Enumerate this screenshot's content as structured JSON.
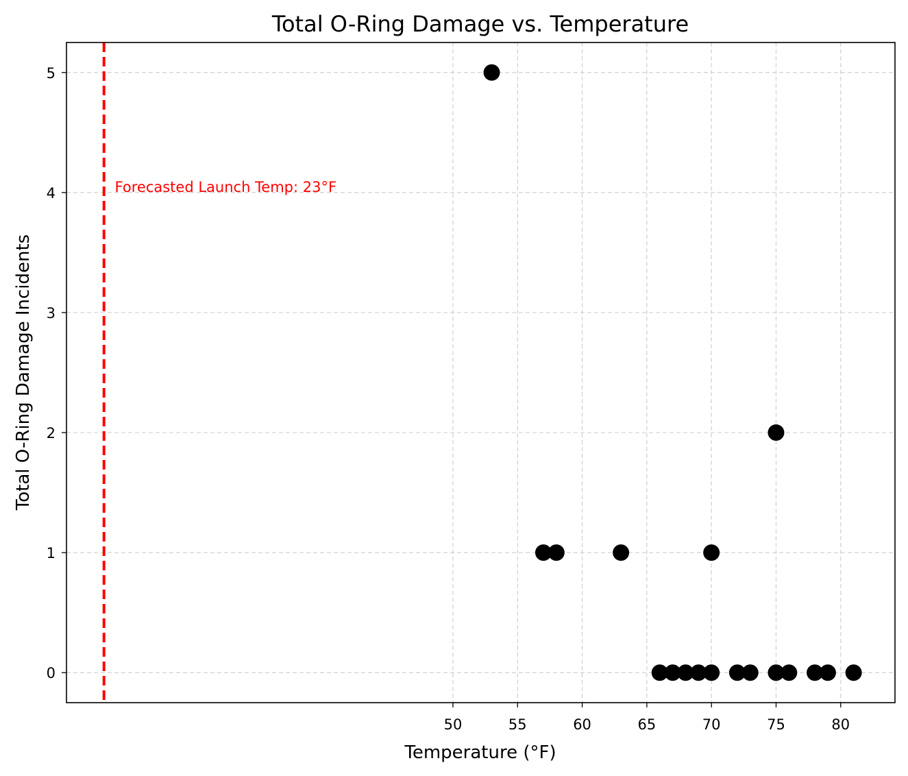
{
  "chart_data": {
    "type": "scatter",
    "title": "Total O-Ring Damage vs. Temperature",
    "xlabel": "Temperature (°F)",
    "ylabel": "Total O-Ring Damage Incidents",
    "xlim": [
      20.1,
      84.2
    ],
    "ylim": [
      -0.25,
      5.25
    ],
    "xticks": [
      50,
      55,
      60,
      65,
      70,
      75,
      80
    ],
    "yticks": [
      0,
      1,
      2,
      3,
      4,
      5
    ],
    "grid": true,
    "points": [
      {
        "x": 53,
        "y": 5
      },
      {
        "x": 57,
        "y": 1
      },
      {
        "x": 58,
        "y": 1
      },
      {
        "x": 63,
        "y": 1
      },
      {
        "x": 70,
        "y": 1
      },
      {
        "x": 75,
        "y": 2
      },
      {
        "x": 66,
        "y": 0
      },
      {
        "x": 67,
        "y": 0
      },
      {
        "x": 68,
        "y": 0
      },
      {
        "x": 69,
        "y": 0
      },
      {
        "x": 70,
        "y": 0
      },
      {
        "x": 72,
        "y": 0
      },
      {
        "x": 73,
        "y": 0
      },
      {
        "x": 75,
        "y": 0
      },
      {
        "x": 76,
        "y": 0
      },
      {
        "x": 78,
        "y": 0
      },
      {
        "x": 79,
        "y": 0
      },
      {
        "x": 81,
        "y": 0
      }
    ],
    "point_color": "#000000",
    "reference_line": {
      "x": 23,
      "color": "#ff0000",
      "style": "dashed"
    },
    "annotation": {
      "text": "Forecasted Launch Temp: 23°F",
      "x": 24,
      "y": 4,
      "color": "#ff0000"
    }
  }
}
